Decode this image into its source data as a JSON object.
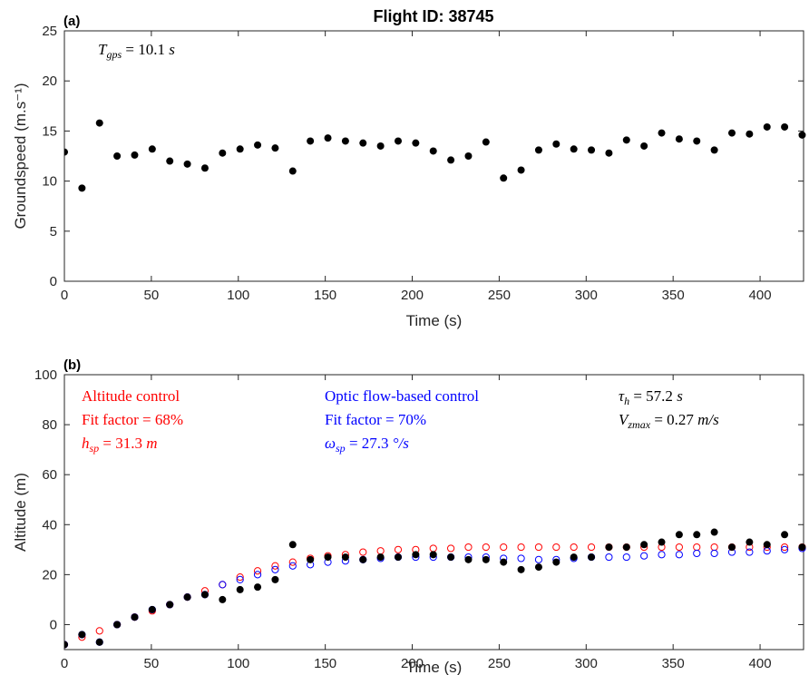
{
  "figure_title": "Flight ID: 38745",
  "chart_data": [
    {
      "type": "scatter",
      "panel_label": "(a)",
      "xlabel": "Time (s)",
      "ylabel": "Groundspeed (m.s⁻¹)",
      "xlim": [
        0,
        425
      ],
      "ylim": [
        0,
        25
      ],
      "xticks": [
        "0",
        "50",
        "100",
        "150",
        "200",
        "250",
        "300",
        "350",
        "400"
      ],
      "yticks": [
        "0",
        "5",
        "10",
        "15",
        "20",
        "25"
      ],
      "grid": false,
      "annotations": [
        {
          "id": "tgps",
          "text": "T_gps = 10.1 s",
          "color": "#000000"
        }
      ],
      "series": [
        {
          "marker": "filled-circle",
          "color": "#000000",
          "x": [
            0,
            10.1,
            20.2,
            30.3,
            40.4,
            50.5,
            60.6,
            70.7,
            80.8,
            90.9,
            101,
            111.1,
            121.2,
            131.3,
            141.4,
            151.5,
            161.6,
            171.7,
            181.8,
            191.9,
            202,
            212.1,
            222.2,
            232.3,
            242.4,
            252.5,
            262.6,
            272.7,
            282.8,
            292.9,
            303,
            313.1,
            323.2,
            333.3,
            343.4,
            353.5,
            363.6,
            373.7,
            383.8,
            393.9,
            404,
            414.1,
            424.2
          ],
          "y": [
            12.9,
            9.3,
            15.8,
            12.5,
            12.6,
            13.2,
            12.0,
            11.7,
            11.3,
            12.8,
            13.2,
            13.6,
            13.3,
            11.0,
            14.0,
            14.3,
            14.0,
            13.8,
            13.5,
            14.0,
            13.8,
            13.0,
            12.1,
            12.5,
            13.9,
            10.3,
            11.1,
            13.1,
            13.7,
            13.2,
            13.1,
            12.8,
            14.1,
            13.5,
            14.8,
            14.2,
            14.0,
            13.1,
            14.8,
            14.7,
            15.4,
            15.4,
            14.6
          ]
        }
      ]
    },
    {
      "type": "scatter",
      "panel_label": "(b)",
      "xlabel": "Time (s)",
      "ylabel": "Altitude (m)",
      "xlim": [
        0,
        425
      ],
      "ylim": [
        -10,
        100
      ],
      "xticks": [
        "0",
        "50",
        "100",
        "150",
        "200",
        "250",
        "300",
        "350",
        "400"
      ],
      "yticks": [
        "0",
        "20",
        "40",
        "60",
        "80",
        "100"
      ],
      "grid": false,
      "annotations": [
        {
          "id": "alt1",
          "text": "Altitude control",
          "color": "#ff0000"
        },
        {
          "id": "alt2",
          "text": "Fit factor = 68%",
          "color": "#ff0000"
        },
        {
          "id": "alt3",
          "text": "h_sp = 31.3 m",
          "color": "#ff0000"
        },
        {
          "id": "of1",
          "text": "Optic flow-based control",
          "color": "#0000ff"
        },
        {
          "id": "of2",
          "text": "Fit factor = 70%",
          "color": "#0000ff"
        },
        {
          "id": "of3",
          "text": "ω_sp = 27.3 °/s",
          "color": "#0000ff"
        },
        {
          "id": "tau",
          "text": "τ_h = 57.2 s",
          "color": "#000000"
        },
        {
          "id": "vz",
          "text": "V_zmax = 0.27 m/s",
          "color": "#000000"
        }
      ],
      "series": [
        {
          "marker": "filled-circle",
          "color": "#000000",
          "x": [
            0,
            10.1,
            20.2,
            30.3,
            40.4,
            50.5,
            60.6,
            70.7,
            80.8,
            90.9,
            101,
            111.1,
            121.2,
            131.3,
            141.4,
            151.5,
            161.6,
            171.7,
            181.8,
            191.9,
            202,
            212.1,
            222.2,
            232.3,
            242.4,
            252.5,
            262.6,
            272.7,
            282.8,
            292.9,
            303,
            313.1,
            323.2,
            333.3,
            343.4,
            353.5,
            363.6,
            373.7,
            383.8,
            393.9,
            404,
            414.1,
            424.2
          ],
          "y": [
            -8,
            -4,
            -7,
            0,
            3,
            6,
            8,
            11,
            12,
            10,
            14,
            15,
            18,
            32,
            26,
            27,
            27,
            26,
            27,
            27,
            28,
            28,
            27,
            26,
            26,
            25,
            22,
            23,
            25,
            27,
            27,
            31,
            31,
            32,
            33,
            36,
            36,
            37,
            31,
            33,
            32,
            36,
            31
          ]
        },
        {
          "marker": "open-circle",
          "color": "#ff0000",
          "x": [
            0,
            10.1,
            20.2,
            30.3,
            40.4,
            50.5,
            60.6,
            70.7,
            80.8,
            90.9,
            101,
            111.1,
            121.2,
            131.3,
            141.4,
            151.5,
            161.6,
            171.7,
            181.8,
            191.9,
            202,
            212.1,
            222.2,
            232.3,
            242.4,
            252.5,
            262.6,
            272.7,
            282.8,
            292.9,
            303,
            313.1,
            323.2,
            333.3,
            343.4,
            353.5,
            363.6,
            373.7,
            383.8,
            393.9,
            404,
            414.1,
            424.2
          ],
          "y": [
            -8,
            -5,
            -2.5,
            0,
            3,
            5.5,
            8,
            11,
            13.5,
            16,
            19,
            21.5,
            23.5,
            25,
            26.5,
            27.5,
            28,
            29,
            29.5,
            30,
            30,
            30.5,
            30.5,
            31,
            31,
            31,
            31,
            31,
            31,
            31,
            31,
            31,
            31,
            31,
            31,
            31,
            31,
            31,
            31,
            31,
            31,
            31,
            31
          ]
        },
        {
          "marker": "open-circle",
          "color": "#0000ff",
          "x": [
            0,
            10.1,
            20.2,
            30.3,
            40.4,
            50.5,
            60.6,
            70.7,
            80.8,
            90.9,
            101,
            111.1,
            121.2,
            131.3,
            141.4,
            151.5,
            161.6,
            171.7,
            181.8,
            191.9,
            202,
            212.1,
            222.2,
            232.3,
            242.4,
            252.5,
            262.6,
            272.7,
            282.8,
            292.9,
            303,
            313.1,
            323.2,
            333.3,
            343.4,
            353.5,
            363.6,
            373.7,
            383.8,
            393.9,
            404,
            414.1,
            424.2
          ],
          "y": [
            -8,
            -4,
            -7,
            0,
            3,
            6,
            8,
            11,
            12,
            16,
            18,
            20,
            22,
            23.5,
            24,
            25,
            25.5,
            26,
            26.5,
            27,
            27,
            27,
            27,
            27,
            27,
            26.5,
            26.5,
            26,
            26,
            26.5,
            27,
            27,
            27,
            27.5,
            28,
            28,
            28.5,
            28.5,
            29,
            29,
            29.5,
            30,
            30.5
          ]
        }
      ]
    }
  ]
}
